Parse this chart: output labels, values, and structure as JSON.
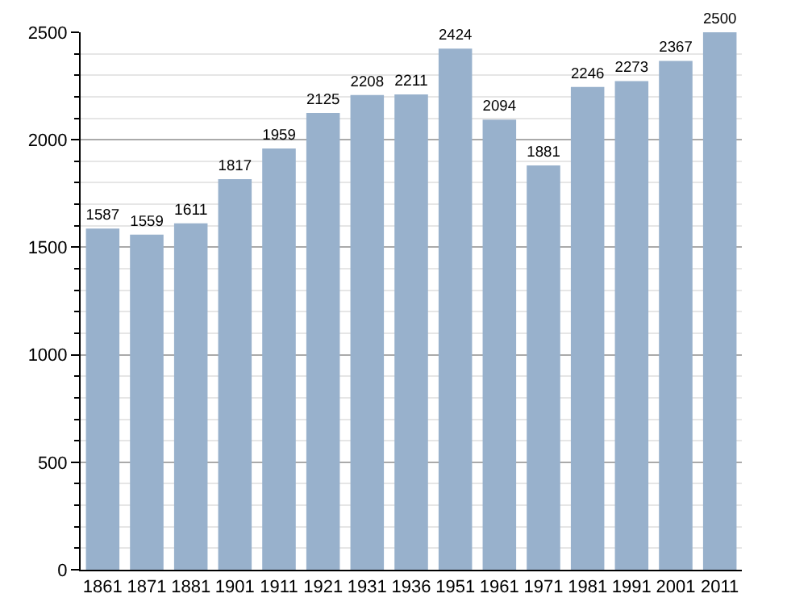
{
  "chart_data": {
    "type": "bar",
    "categories": [
      "1861",
      "1871",
      "1881",
      "1901",
      "1911",
      "1921",
      "1931",
      "1936",
      "1951",
      "1961",
      "1971",
      "1981",
      "1991",
      "2001",
      "2011"
    ],
    "values": [
      1587,
      1559,
      1611,
      1817,
      1959,
      2125,
      2208,
      2211,
      2424,
      2094,
      1881,
      2246,
      2273,
      2367,
      2500
    ],
    "color": "#98b1cc",
    "ylim": [
      0,
      2500
    ],
    "yticks": [
      0,
      500,
      1000,
      1500,
      2000,
      2500
    ],
    "grid": "y",
    "data_labels": true
  }
}
